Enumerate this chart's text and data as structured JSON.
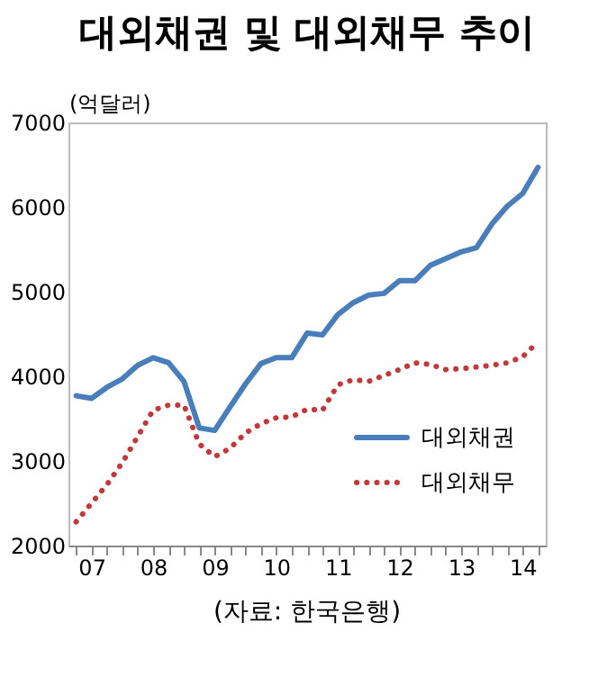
{
  "chart_data": {
    "type": "line",
    "title": "대외채권 및 대외채무 추이",
    "ylabel": "(억달러)",
    "categories": [
      null,
      "07",
      null,
      null,
      null,
      "08",
      null,
      null,
      null,
      "09",
      null,
      null,
      null,
      "10",
      null,
      null,
      null,
      "11",
      null,
      null,
      null,
      "12",
      null,
      null,
      null,
      "13",
      null,
      null,
      null,
      "14",
      null
    ],
    "series": [
      {
        "name": "대외채권",
        "color": "#4a7ebb",
        "line_style": "solid",
        "values": [
          3770,
          3740,
          3870,
          3970,
          4130,
          4220,
          4160,
          3940,
          3390,
          3360,
          3640,
          3910,
          4150,
          4220,
          4220,
          4510,
          4490,
          4730,
          4870,
          4960,
          4980,
          5130,
          5130,
          5310,
          5390,
          5470,
          5520,
          5800,
          6010,
          6160,
          6470
        ]
      },
      {
        "name": "대외채무",
        "color": "#c0393b",
        "line_style": "dotted",
        "values": [
          2280,
          2500,
          2720,
          2980,
          3290,
          3600,
          3660,
          3660,
          3200,
          3050,
          3150,
          3330,
          3440,
          3510,
          3520,
          3610,
          3600,
          3900,
          3960,
          3940,
          4010,
          4080,
          4160,
          4140,
          4080,
          4090,
          4110,
          4130,
          4160,
          4230,
          4410
        ]
      }
    ],
    "ylim": [
      2000,
      7000
    ],
    "yticks": [
      2000,
      3000,
      4000,
      5000,
      6000,
      7000
    ],
    "grid": false,
    "legend": "bottom right",
    "marker": "none",
    "annotations": [
      "(자료: 한국은행)"
    ]
  }
}
